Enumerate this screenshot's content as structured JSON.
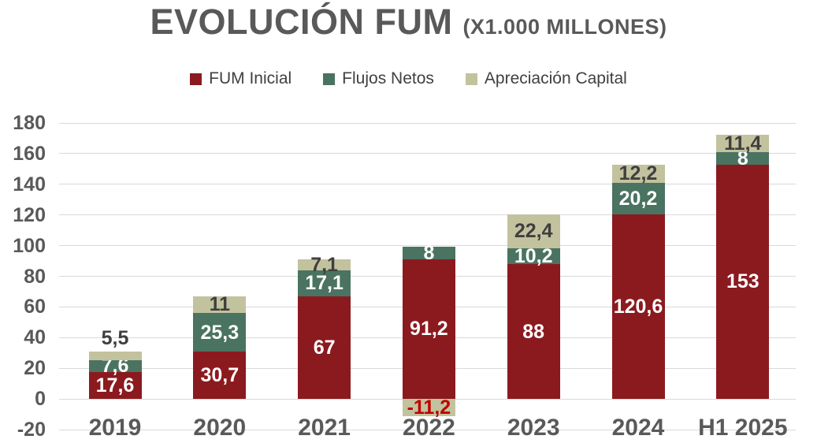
{
  "title": {
    "main": "EVOLUCIÓN FUM",
    "suffix": "(X1.000 MILLONES)"
  },
  "chart_data": {
    "type": "bar",
    "stacked": true,
    "title": "EVOLUCIÓN FUM (X1.000 MILLONES)",
    "categories": [
      "2019",
      "2020",
      "2021",
      "2022",
      "2023",
      "2024",
      "H1 2025"
    ],
    "series": [
      {
        "name": "FUM Inicial",
        "color": "#8B1A1F",
        "label_color": "#FFFFFF",
        "values": [
          17.6,
          30.7,
          67,
          91.2,
          88,
          120.6,
          153
        ],
        "labels": [
          "17,6",
          "30,7",
          "67",
          "91,2",
          "88",
          "120,6",
          "153"
        ]
      },
      {
        "name": "Flujos Netos",
        "color": "#4A7361",
        "label_color": "#FFFFFF",
        "values": [
          7.6,
          25.3,
          17.1,
          8,
          10.2,
          20.2,
          8
        ],
        "labels": [
          "7,6",
          "25,3",
          "17,1",
          "8",
          "10,2",
          "20,2",
          "8"
        ]
      },
      {
        "name": "Apreciación Capital",
        "color": "#C3C29E",
        "label_color": "#3F3F3F",
        "negative_label_color": "#C00000",
        "values": [
          5.5,
          11,
          7.1,
          -11.2,
          22.4,
          12.2,
          11.4
        ],
        "labels": [
          "5,5",
          "11",
          "7,1",
          "-11,2",
          "22,4",
          "12,2",
          "11,4"
        ]
      }
    ],
    "y_axis": {
      "min": -20,
      "max": 180,
      "step": 20,
      "tick_labels": [
        "180",
        "160",
        "140",
        "120",
        "100",
        "80",
        "60",
        "40",
        "20",
        "0",
        "-20"
      ]
    },
    "grid": true,
    "legend_position": "top",
    "gridline_color": "#D9D9D9",
    "axis_text_color": "#595959",
    "background_color": "#FFFFFF"
  }
}
